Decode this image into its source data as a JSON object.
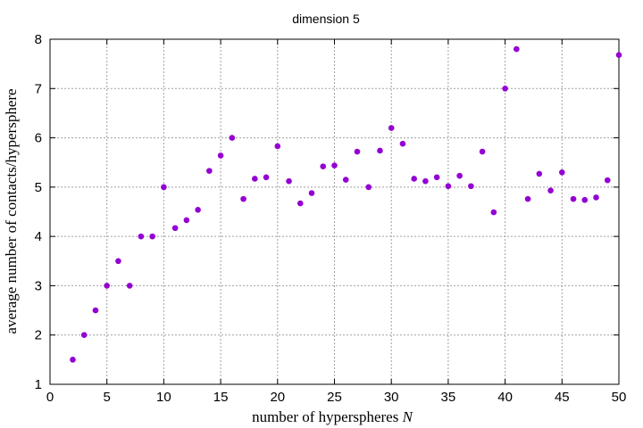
{
  "chart_data": {
    "type": "scatter",
    "title": "dimension 5",
    "xlabel_text": "number of hyperspheres ",
    "xlabel_var": "N",
    "ylabel": "average number of contacts/hypersphere",
    "xlim": [
      0,
      50
    ],
    "ylim": [
      1,
      8
    ],
    "xticks": [
      0,
      5,
      10,
      15,
      20,
      25,
      30,
      35,
      40,
      45,
      50
    ],
    "yticks": [
      1,
      2,
      3,
      4,
      5,
      6,
      7,
      8
    ],
    "grid": true,
    "marker_color": "#9400d3",
    "series": [
      {
        "name": "dimension 5",
        "x": [
          2,
          3,
          4,
          5,
          6,
          7,
          8,
          9,
          10,
          11,
          12,
          13,
          14,
          15,
          16,
          17,
          18,
          19,
          20,
          21,
          22,
          23,
          24,
          25,
          26,
          27,
          28,
          29,
          30,
          31,
          32,
          33,
          34,
          35,
          36,
          37,
          38,
          39,
          40,
          41,
          42,
          43,
          44,
          45,
          46,
          47,
          48,
          49,
          50
        ],
        "y": [
          1.5,
          2.0,
          2.5,
          3.0,
          3.5,
          3.0,
          4.0,
          4.0,
          5.0,
          4.17,
          4.33,
          4.54,
          5.33,
          5.64,
          6.0,
          4.76,
          5.17,
          5.2,
          5.83,
          5.12,
          4.67,
          4.88,
          5.42,
          5.44,
          5.15,
          5.72,
          5.0,
          5.74,
          6.2,
          5.88,
          5.17,
          5.12,
          5.2,
          5.02,
          5.23,
          5.02,
          5.72,
          4.49,
          7.0,
          7.8,
          4.76,
          5.27,
          4.93,
          5.3,
          4.76,
          4.74,
          4.79,
          5.14,
          7.68
        ]
      }
    ]
  }
}
